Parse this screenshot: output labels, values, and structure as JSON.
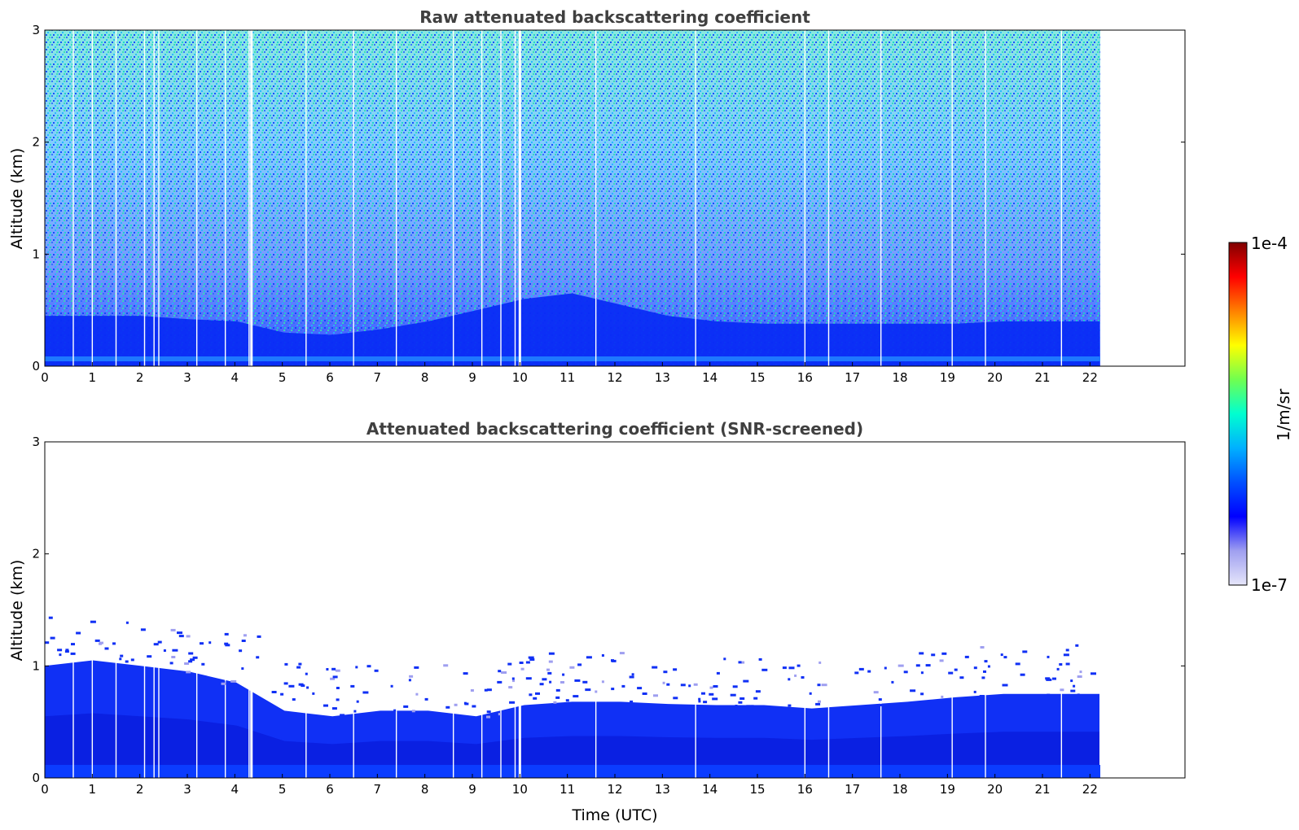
{
  "colorbar": {
    "max_label": "1e-4",
    "min_label": "1e-7",
    "unit_label": "1/m/sr",
    "stops": [
      "#e6e6fa",
      "#9f9ff0",
      "#0000ff",
      "#0050ff",
      "#00b0ff",
      "#00ffd0",
      "#70ff50",
      "#ffff00",
      "#ff8000",
      "#ff0000",
      "#800000"
    ]
  },
  "chart_data": [
    {
      "type": "heatmap",
      "title": "Raw attenuated backscattering coefficient",
      "xlabel": "",
      "ylabel": "Altitude (km)",
      "xlim": [
        0,
        24
      ],
      "ylim": [
        0,
        3
      ],
      "x_ticks": [
        "0",
        "1",
        "2",
        "3",
        "4",
        "5",
        "6",
        "7",
        "8",
        "9",
        "10",
        "11",
        "12",
        "13",
        "14",
        "15",
        "16",
        "17",
        "18",
        "19",
        "20",
        "21",
        "22"
      ],
      "y_ticks": [
        "0",
        "1",
        "2",
        "3"
      ],
      "data_end_time": 22.2,
      "signal_top_km": [
        0.45,
        0.45,
        0.45,
        0.42,
        0.4,
        0.3,
        0.28,
        0.33,
        0.4,
        0.5,
        0.6,
        0.65,
        0.55,
        0.45,
        0.4,
        0.38,
        0.38,
        0.38,
        0.38,
        0.38,
        0.4,
        0.4,
        0.4
      ],
      "noise_color_at_top": "cyan-green",
      "signal_color": "blue"
    },
    {
      "type": "heatmap",
      "title": "Attenuated backscattering coefficient (SNR-screened)",
      "xlabel": "Time (UTC)",
      "ylabel": "Altitude (km)",
      "xlim": [
        0,
        24
      ],
      "ylim": [
        0,
        3
      ],
      "x_ticks": [
        "0",
        "1",
        "2",
        "3",
        "4",
        "5",
        "6",
        "7",
        "8",
        "9",
        "10",
        "11",
        "12",
        "13",
        "14",
        "15",
        "16",
        "17",
        "18",
        "19",
        "20",
        "21",
        "22"
      ],
      "y_ticks": [
        "0",
        "1",
        "2",
        "3"
      ],
      "data_end_time": 22.2,
      "boundary_layer_top_km": [
        1.0,
        1.05,
        1.0,
        0.95,
        0.85,
        0.6,
        0.55,
        0.6,
        0.6,
        0.55,
        0.65,
        0.68,
        0.68,
        0.66,
        0.65,
        0.65,
        0.62,
        0.65,
        0.68,
        0.72,
        0.75,
        0.75,
        0.75
      ],
      "signal_color": "blue"
    }
  ]
}
